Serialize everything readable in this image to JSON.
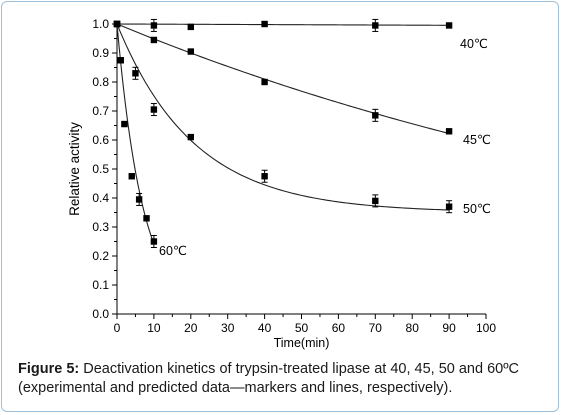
{
  "chart_data": {
    "type": "scatter",
    "xlabel": "Time(min)",
    "ylabel": "Relative activity",
    "xlim": [
      0,
      100
    ],
    "ylim": [
      0.0,
      1.0
    ],
    "xticks": [
      0,
      10,
      20,
      30,
      40,
      50,
      60,
      70,
      80,
      90,
      100
    ],
    "yticks": [
      0.0,
      0.1,
      0.2,
      0.3,
      0.4,
      0.5,
      0.6,
      0.7,
      0.8,
      0.9,
      1.0
    ],
    "grid": false,
    "series": [
      {
        "name": "40℃",
        "x": [
          0,
          10,
          20,
          40,
          70,
          90
        ],
        "y": [
          1.0,
          0.995,
          0.99,
          1.0,
          0.995,
          0.995
        ],
        "fit": {
          "model": "exponential",
          "plateau": 0.0,
          "k": 5e-05
        },
        "error_points": [
          10,
          70
        ]
      },
      {
        "name": "45℃",
        "x": [
          0,
          10,
          20,
          40,
          70,
          90
        ],
        "y": [
          1.0,
          0.945,
          0.905,
          0.8,
          0.685,
          0.63
        ],
        "fit": {
          "model": "exponential",
          "plateau": 0.0,
          "k": 0.00527
        },
        "error_points": [
          70
        ]
      },
      {
        "name": "50℃",
        "x": [
          0,
          1,
          5,
          10,
          20,
          40,
          70,
          90
        ],
        "y": [
          1.0,
          0.875,
          0.83,
          0.705,
          0.61,
          0.475,
          0.39,
          0.37
        ],
        "fit": {
          "model": "exponential",
          "plateau": 0.35,
          "k": 0.048
        },
        "error_points": [
          5,
          10,
          40,
          70,
          90
        ]
      },
      {
        "name": "60℃",
        "x": [
          0,
          1,
          2,
          4,
          6,
          8,
          10
        ],
        "y": [
          1.0,
          0.875,
          0.655,
          0.475,
          0.395,
          0.33,
          0.25
        ],
        "fit": {
          "model": "exponential",
          "plateau": 0.0,
          "k": 0.142
        },
        "fit_x_range": [
          0,
          10
        ],
        "error_points": [
          6,
          10
        ]
      }
    ]
  },
  "caption": {
    "label": "Figure 5:",
    "text": "Deactivation kinetics of trypsin-treated lipase at 40, 45, 50 and 60ºC (experimental and predicted data—markers and lines, respectively)."
  }
}
